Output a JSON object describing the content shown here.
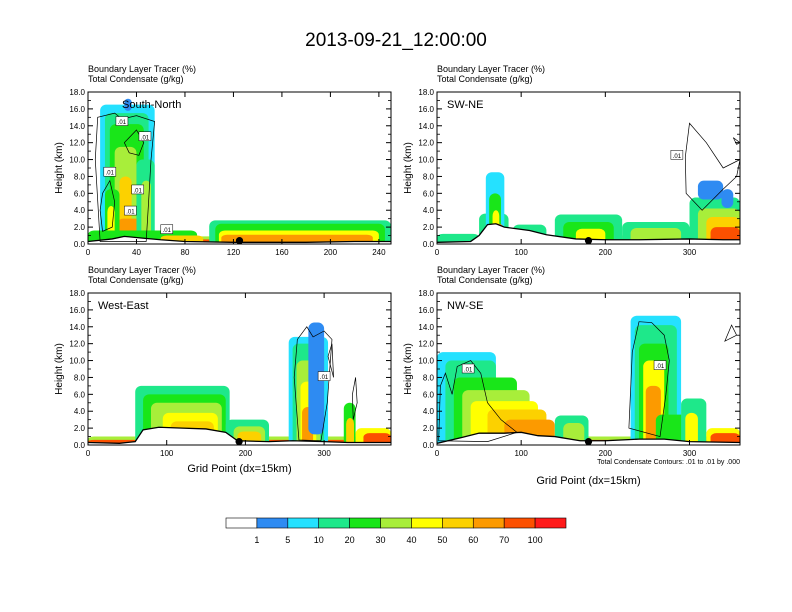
{
  "title": "2013-09-21_12:00:00",
  "field_labels": [
    "Boundary Layer Tracer   (%)",
    "Total Condensate   (g/kg)"
  ],
  "x_axis_label": "Grid Point (dx=15km)",
  "y_axis_label": "Height (km)",
  "contour_note": "Total Condensate Contours: .01 to .01 by .000",
  "colorbar": {
    "labels": [
      "1",
      "5",
      "10",
      "20",
      "30",
      "40",
      "50",
      "60",
      "70",
      "100"
    ],
    "colors": [
      "#ffffff",
      "#2e8bf2",
      "#25e1ff",
      "#1ee88a",
      "#19e619",
      "#a8ee3a",
      "#ffff00",
      "#fcd100",
      "#fc9a00",
      "#fc5000",
      "#ff1a1a"
    ]
  },
  "chart_data": [
    {
      "type": "contour-cross-section",
      "panel_label": "South-North",
      "x_ticks": [
        "0",
        "40",
        "80",
        "120",
        "160",
        "200",
        "240"
      ],
      "x_tick_values": [
        0,
        40,
        80,
        120,
        160,
        200,
        240
      ],
      "xlim": [
        0,
        250
      ],
      "y_ticks": [
        "0.0",
        "2.0",
        "4.0",
        "6.0",
        "8.0",
        "10.0",
        "12.0",
        "14.0",
        "16.0",
        "18.0"
      ],
      "ylim": [
        0,
        18
      ],
      "marker_x": 125,
      "contour_labels": [
        ".01",
        ".01",
        ".01",
        ".01",
        ".01",
        ".01"
      ]
    },
    {
      "type": "contour-cross-section",
      "panel_label": "SW-NE",
      "x_ticks": [
        "0",
        "100",
        "200",
        "300"
      ],
      "x_tick_values": [
        0,
        100,
        200,
        300
      ],
      "xlim": [
        0,
        360
      ],
      "y_ticks": [
        "0.0",
        "2.0",
        "4.0",
        "6.0",
        "8.0",
        "10.0",
        "12.0",
        "14.0",
        "16.0",
        "18.0"
      ],
      "ylim": [
        0,
        18
      ],
      "marker_x": 180,
      "contour_labels": [
        ".01"
      ]
    },
    {
      "type": "contour-cross-section",
      "panel_label": "West-East",
      "x_ticks": [
        "0",
        "100",
        "200",
        "300"
      ],
      "x_tick_values": [
        0,
        100,
        200,
        300
      ],
      "xlim": [
        0,
        385
      ],
      "y_ticks": [
        "0.0",
        "2.0",
        "4.0",
        "6.0",
        "8.0",
        "10.0",
        "12.0",
        "14.0",
        "16.0",
        "18.0"
      ],
      "ylim": [
        0,
        18
      ],
      "marker_x": 192,
      "contour_labels": [
        ".01"
      ]
    },
    {
      "type": "contour-cross-section",
      "panel_label": "NW-SE",
      "x_ticks": [
        "0",
        "100",
        "200",
        "300"
      ],
      "x_tick_values": [
        0,
        100,
        200,
        300
      ],
      "xlim": [
        0,
        360
      ],
      "y_ticks": [
        "0.0",
        "2.0",
        "4.0",
        "6.0",
        "8.0",
        "10.0",
        "12.0",
        "14.0",
        "16.0",
        "18.0"
      ],
      "ylim": [
        0,
        18
      ],
      "marker_x": 180,
      "contour_labels": [
        ".01",
        ".01"
      ]
    }
  ]
}
